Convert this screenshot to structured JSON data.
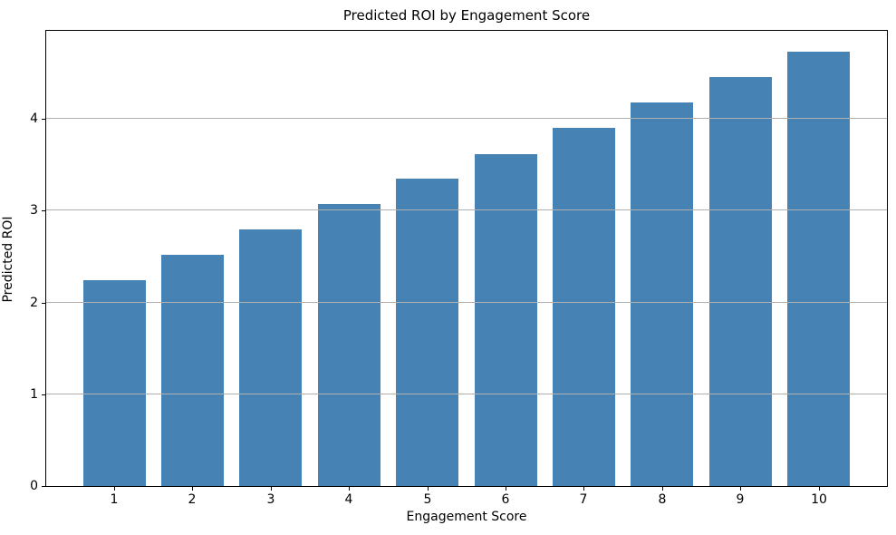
{
  "chart_data": {
    "type": "bar",
    "title": "Predicted ROI by Engagement Score",
    "xlabel": "Engagement Score",
    "ylabel": "Predicted ROI",
    "categories": [
      "1",
      "2",
      "3",
      "4",
      "5",
      "6",
      "7",
      "8",
      "9",
      "10"
    ],
    "series": [
      {
        "name": "Predicted ROI",
        "values": [
          2.24,
          2.52,
          2.8,
          3.07,
          3.35,
          3.62,
          3.9,
          4.18,
          4.46,
          4.73
        ]
      }
    ],
    "yticks": [
      0,
      1,
      2,
      3,
      4
    ],
    "ylim": [
      0,
      4.96
    ],
    "grid": "horizontal gridlines at integer y ticks, drawn above bars",
    "legend": "none",
    "bar_color": "#4682b4",
    "grid_color": "#b0b0b0",
    "axis_color": "#000000",
    "background_color": "#ffffff"
  }
}
